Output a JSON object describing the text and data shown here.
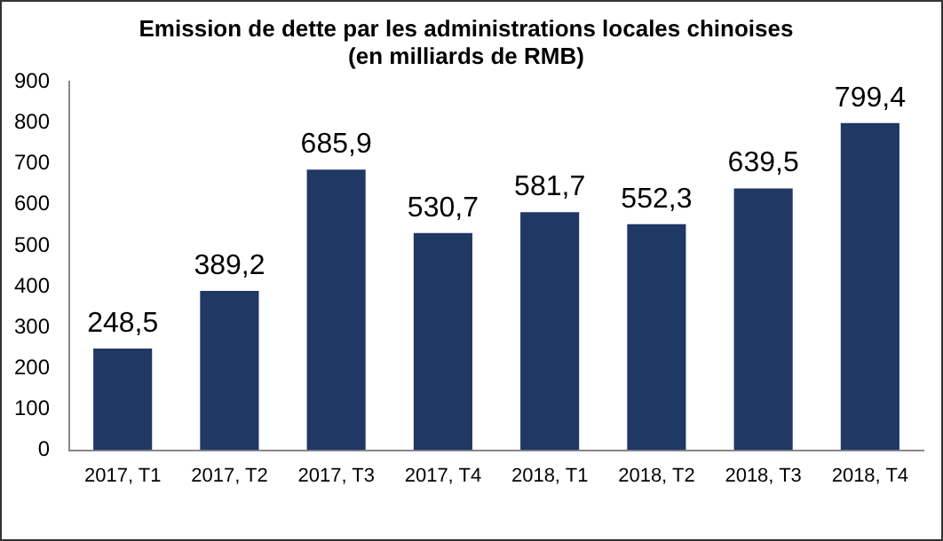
{
  "chart_data": {
    "type": "bar",
    "title": "Emission de dette par les administrations locales chinoises",
    "subtitle": "(en milliards de RMB)",
    "categories": [
      "2017, T1",
      "2017, T2",
      "2017, T3",
      "2017, T4",
      "2018, T1",
      "2018, T2",
      "2018, T3",
      "2018, T4"
    ],
    "values": [
      248.5,
      389.2,
      685.9,
      530.7,
      581.7,
      552.3,
      639.5,
      799.4
    ],
    "value_labels": [
      "248,5",
      "389,2",
      "685,9",
      "530,7",
      "581,7",
      "552,3",
      "639,5",
      "799,4"
    ],
    "color": "#1f3864",
    "ylim": [
      0,
      900
    ],
    "yticks": [
      0,
      100,
      200,
      300,
      400,
      500,
      600,
      700,
      800,
      900
    ],
    "grid": false,
    "legend": false
  }
}
